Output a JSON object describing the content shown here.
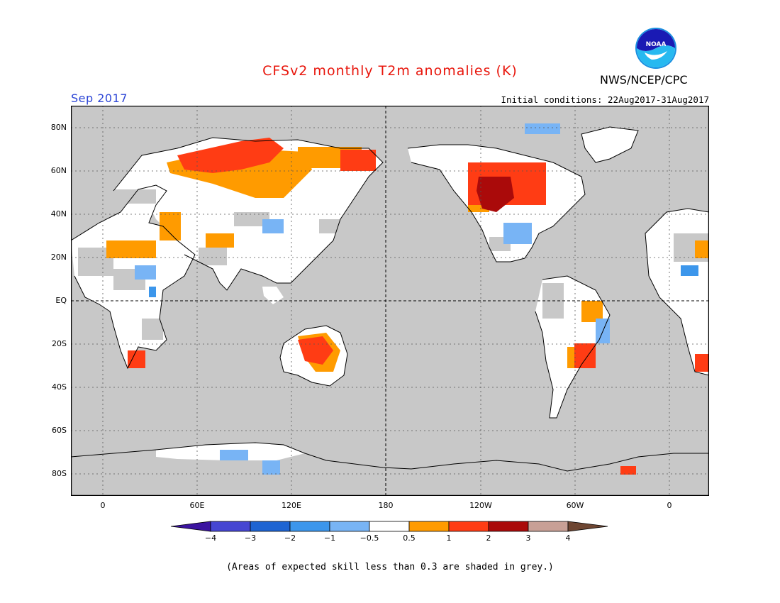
{
  "header": {
    "title": "CFSv2 monthly T2m anomalies (K)",
    "month": "Sep 2017",
    "agency": "NWS/NCEP/CPC",
    "initial_conditions": "Initial conditions: 22Aug2017-31Aug2017",
    "logo_text": "NOAA"
  },
  "map": {
    "projection": "equirectangular",
    "center_longitude": "180",
    "background_color": "#c8c8c8",
    "lat_labels": [
      "80N",
      "60N",
      "40N",
      "20N",
      "EQ",
      "20S",
      "40S",
      "60S",
      "80S"
    ],
    "lon_labels": [
      "0",
      "60E",
      "120E",
      "180",
      "120W",
      "60W",
      "0"
    ]
  },
  "colorbar": {
    "tick_labels": [
      "−4",
      "−3",
      "−2",
      "−1",
      "−0.5",
      "0.5",
      "1",
      "2",
      "3",
      "4"
    ],
    "colors": [
      "#3c14a0",
      "#4646d2",
      "#1e64d2",
      "#3c96eb",
      "#78b4f5",
      "#ffffff",
      "#ff9b00",
      "#ff3c14",
      "#aa0a0a",
      "#c8a096",
      "#6e4632"
    ]
  },
  "footnote": "(Areas of expected skill less than 0.3 are shaded in grey.)"
}
